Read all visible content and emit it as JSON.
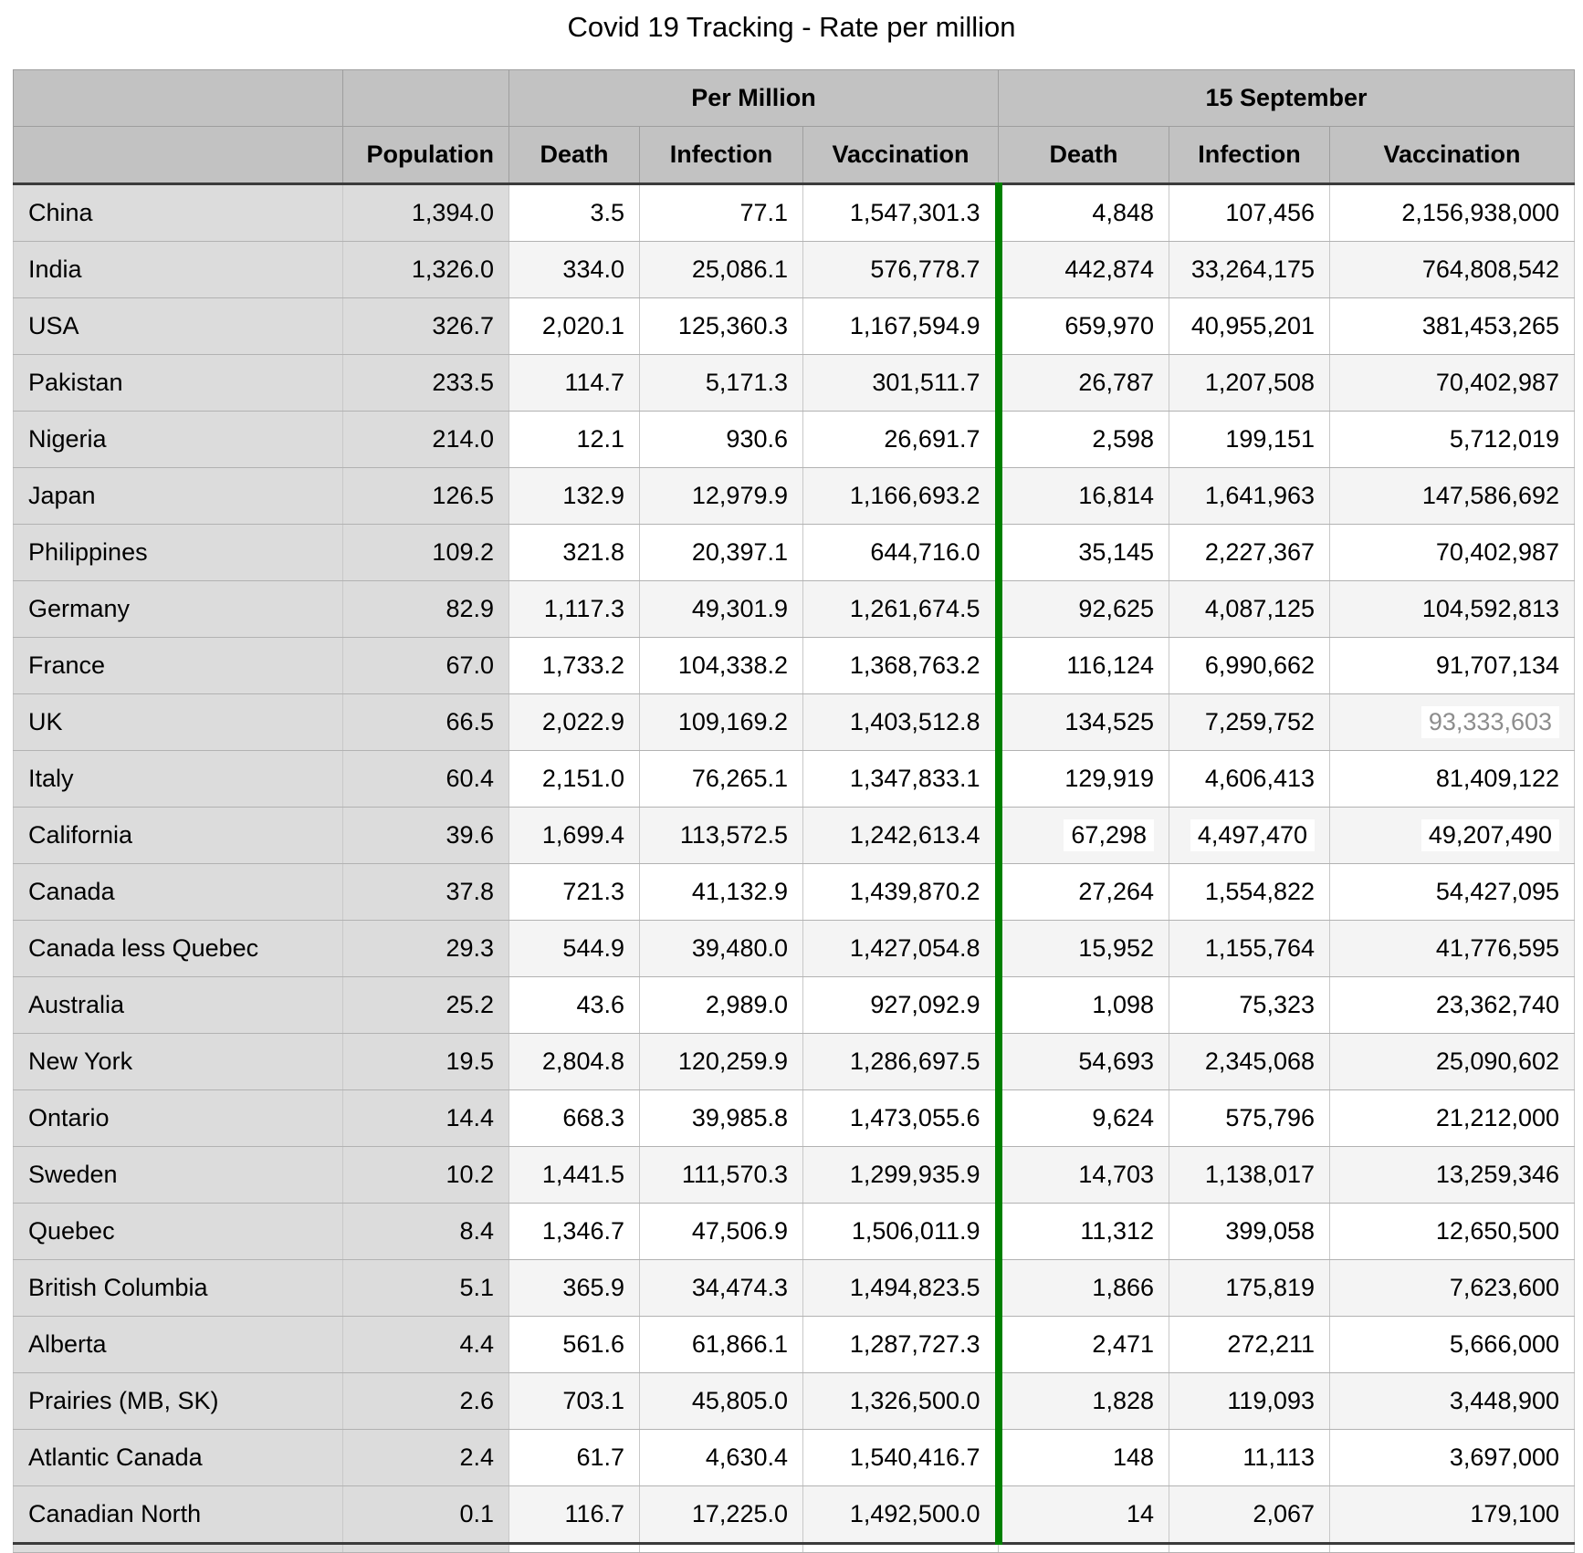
{
  "title": "Covid 19 Tracking - Rate per million",
  "colors": {
    "header_bg": "#c2c2c2",
    "label_column_bg": "#dcdcdc",
    "alt_row_bg": "#f4f4f4",
    "grid_line": "#c8c8c8",
    "heavy_border": "#3b3b3b",
    "green_divider": "#008000",
    "muted_value_text": "#8d8d8d"
  },
  "chart_data": {
    "type": "table",
    "title": "Covid 19 Tracking - Rate per million",
    "group_headers": [
      {
        "label": "",
        "span": 1
      },
      {
        "label": "",
        "span": 1
      },
      {
        "label": "Per Million",
        "span": 3
      },
      {
        "label": "15 September",
        "span": 3
      }
    ],
    "columns": [
      "",
      "Population",
      "Death",
      "Infection",
      "Vaccination",
      "Death",
      "Infection",
      "Vaccination"
    ],
    "rows": [
      {
        "name": "China",
        "values": [
          "1,394.0",
          "3.5",
          "77.1",
          "1,547,301.3",
          "4,848",
          "107,456",
          "2,156,938,000"
        ]
      },
      {
        "name": "India",
        "values": [
          "1,326.0",
          "334.0",
          "25,086.1",
          "576,778.7",
          "442,874",
          "33,264,175",
          "764,808,542"
        ]
      },
      {
        "name": "USA",
        "values": [
          "326.7",
          "2,020.1",
          "125,360.3",
          "1,167,594.9",
          "659,970",
          "40,955,201",
          "381,453,265"
        ]
      },
      {
        "name": "Pakistan",
        "values": [
          "233.5",
          "114.7",
          "5,171.3",
          "301,511.7",
          "26,787",
          "1,207,508",
          "70,402,987"
        ]
      },
      {
        "name": "Nigeria",
        "values": [
          "214.0",
          "12.1",
          "930.6",
          "26,691.7",
          "2,598",
          "199,151",
          "5,712,019"
        ]
      },
      {
        "name": "Japan",
        "values": [
          "126.5",
          "132.9",
          "12,979.9",
          "1,166,693.2",
          "16,814",
          "1,641,963",
          "147,586,692"
        ]
      },
      {
        "name": "Philippines",
        "values": [
          "109.2",
          "321.8",
          "20,397.1",
          "644,716.0",
          "35,145",
          "2,227,367",
          "70,402,987"
        ]
      },
      {
        "name": "Germany",
        "values": [
          "82.9",
          "1,117.3",
          "49,301.9",
          "1,261,674.5",
          "92,625",
          "4,087,125",
          "104,592,813"
        ]
      },
      {
        "name": "France",
        "values": [
          "67.0",
          "1,733.2",
          "104,338.2",
          "1,368,763.2",
          "116,124",
          "6,990,662",
          "91,707,134"
        ]
      },
      {
        "name": "UK",
        "values": [
          "66.5",
          "2,022.9",
          "109,169.2",
          "1,403,512.8",
          "134,525",
          "7,259,752",
          "93,333,603"
        ],
        "muted_cells": [
          6
        ]
      },
      {
        "name": "Italy",
        "values": [
          "60.4",
          "2,151.0",
          "76,265.1",
          "1,347,833.1",
          "129,919",
          "4,606,413",
          "81,409,122"
        ]
      },
      {
        "name": "California",
        "values": [
          "39.6",
          "1,699.4",
          "113,572.5",
          "1,242,613.4",
          "67,298",
          "4,497,470",
          "49,207,490"
        ],
        "highlight_cells": [
          4,
          5,
          6
        ]
      },
      {
        "name": "Canada",
        "values": [
          "37.8",
          "721.3",
          "41,132.9",
          "1,439,870.2",
          "27,264",
          "1,554,822",
          "54,427,095"
        ]
      },
      {
        "name": "Canada less Quebec",
        "values": [
          "29.3",
          "544.9",
          "39,480.0",
          "1,427,054.8",
          "15,952",
          "1,155,764",
          "41,776,595"
        ]
      },
      {
        "name": "Australia",
        "values": [
          "25.2",
          "43.6",
          "2,989.0",
          "927,092.9",
          "1,098",
          "75,323",
          "23,362,740"
        ]
      },
      {
        "name": "New York",
        "values": [
          "19.5",
          "2,804.8",
          "120,259.9",
          "1,286,697.5",
          "54,693",
          "2,345,068",
          "25,090,602"
        ]
      },
      {
        "name": "Ontario",
        "values": [
          "14.4",
          "668.3",
          "39,985.8",
          "1,473,055.6",
          "9,624",
          "575,796",
          "21,212,000"
        ]
      },
      {
        "name": "Sweden",
        "values": [
          "10.2",
          "1,441.5",
          "111,570.3",
          "1,299,935.9",
          "14,703",
          "1,138,017",
          "13,259,346"
        ]
      },
      {
        "name": "Quebec",
        "values": [
          "8.4",
          "1,346.7",
          "47,506.9",
          "1,506,011.9",
          "11,312",
          "399,058",
          "12,650,500"
        ]
      },
      {
        "name": "British Columbia",
        "values": [
          "5.1",
          "365.9",
          "34,474.3",
          "1,494,823.5",
          "1,866",
          "175,819",
          "7,623,600"
        ]
      },
      {
        "name": "Alberta",
        "values": [
          "4.4",
          "561.6",
          "61,866.1",
          "1,287,727.3",
          "2,471",
          "272,211",
          "5,666,000"
        ]
      },
      {
        "name": "Prairies (MB, SK)",
        "values": [
          "2.6",
          "703.1",
          "45,805.0",
          "1,326,500.0",
          "1,828",
          "119,093",
          "3,448,900"
        ]
      },
      {
        "name": "Atlantic Canada",
        "values": [
          "2.4",
          "61.7",
          "4,630.4",
          "1,540,416.7",
          "148",
          "11,113",
          "3,697,000"
        ]
      },
      {
        "name": "Canadian North",
        "values": [
          "0.1",
          "116.7",
          "17,225.0",
          "1,492,500.0",
          "14",
          "2,067",
          "179,100"
        ]
      }
    ]
  }
}
